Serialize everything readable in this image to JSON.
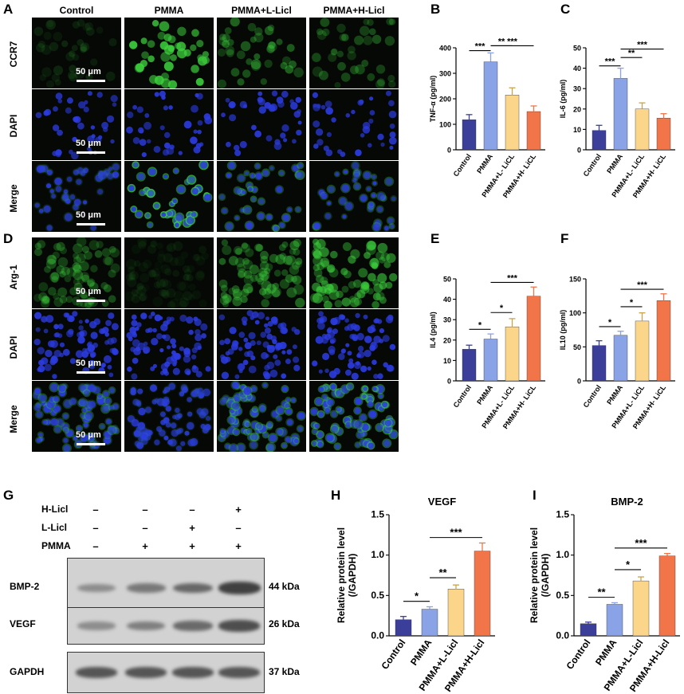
{
  "panels": {
    "A": "A",
    "B": "B",
    "C": "C",
    "D": "D",
    "E": "E",
    "F": "F",
    "G": "G",
    "H": "H",
    "I": "I"
  },
  "micro_columns": [
    "Control",
    "PMMA",
    "PMMA+L-Licl",
    "PMMA+H-Licl"
  ],
  "micro_rows_top": [
    "CCR7",
    "DAPI",
    "Merge"
  ],
  "micro_rows_bottom": [
    "Arg-1",
    "DAPI",
    "Merge"
  ],
  "scale_bar_label": "50 μm",
  "colors": {
    "control": "#3b3f99",
    "pmma": "#8aa2e6",
    "low": "#fbd68a",
    "high": "#f2754a",
    "green": "#2aa02a",
    "blue": "#2233cc"
  },
  "western": {
    "rows": [
      {
        "label": "H-Licl",
        "signs": [
          "–",
          "–",
          "–",
          "+"
        ]
      },
      {
        "label": "L-Licl",
        "signs": [
          "–",
          "–",
          "+",
          "–"
        ]
      },
      {
        "label": "PMMA",
        "signs": [
          "–",
          "+",
          "+",
          "+"
        ]
      }
    ],
    "blots": [
      {
        "label": "BMP-2",
        "kda": "44 kDa",
        "intensity": [
          0.35,
          0.5,
          0.62,
          0.9
        ]
      },
      {
        "label": "VEGF",
        "kda": "26 kDa",
        "intensity": [
          0.35,
          0.45,
          0.6,
          0.8
        ]
      },
      {
        "label": "GAPDH",
        "kda": "37 kDa",
        "intensity": [
          0.75,
          0.75,
          0.75,
          0.75
        ]
      }
    ]
  },
  "chart_data": [
    {
      "id": "B",
      "type": "bar",
      "categories": [
        "Control",
        "PMMA",
        "PMMA+L- LiCL",
        "PMMA+H- LiCL"
      ],
      "values": [
        118,
        345,
        215,
        150
      ],
      "errors": [
        20,
        35,
        28,
        22
      ],
      "ylabel": "TNF-α (pg/ml)",
      "ylim": [
        0,
        400
      ],
      "yticks": [
        0,
        100,
        200,
        300,
        400
      ],
      "sig": [
        {
          "a": 0,
          "b": 1,
          "label": "***"
        },
        {
          "a": 1,
          "b": 2,
          "label": "**"
        },
        {
          "a": 1,
          "b": 3,
          "label": "***"
        }
      ]
    },
    {
      "id": "C",
      "type": "bar",
      "categories": [
        "Control",
        "PMMA",
        "PMMA+L- LiCL",
        "PMMA+H- LiCL"
      ],
      "values": [
        9.5,
        35,
        20,
        15.5
      ],
      "errors": [
        2.5,
        5,
        3,
        2.2
      ],
      "ylabel": "IL-6 (pg/ml)",
      "ylim": [
        0,
        50
      ],
      "yticks": [
        0,
        10,
        20,
        30,
        40,
        50
      ],
      "sig": [
        {
          "a": 0,
          "b": 1,
          "label": "***"
        },
        {
          "a": 1,
          "b": 2,
          "label": "**"
        },
        {
          "a": 1,
          "b": 3,
          "label": "***"
        }
      ]
    },
    {
      "id": "E",
      "type": "bar",
      "categories": [
        "Control",
        "PMMA",
        "PMMA+L- LiCL",
        "PMMA+H- LiCL"
      ],
      "values": [
        15.5,
        20.5,
        26.5,
        41.5
      ],
      "errors": [
        2,
        2.5,
        4,
        4.5
      ],
      "ylabel": "IL4 (pg/ml)",
      "ylim": [
        0,
        50
      ],
      "yticks": [
        0,
        10,
        20,
        30,
        40,
        50
      ],
      "sig": [
        {
          "a": 0,
          "b": 1,
          "label": "*"
        },
        {
          "a": 1,
          "b": 2,
          "label": "*"
        },
        {
          "a": 1,
          "b": 3,
          "label": "***"
        }
      ]
    },
    {
      "id": "F",
      "type": "bar",
      "categories": [
        "Control",
        "PMMA",
        "PMMA+L- LiCL",
        "PMMA+H- LiCL"
      ],
      "values": [
        52,
        67,
        88,
        118
      ],
      "errors": [
        7,
        6,
        12,
        10
      ],
      "ylabel": "IL10 (pg/ml)",
      "ylim": [
        0,
        150
      ],
      "yticks": [
        0,
        50,
        100,
        150
      ],
      "sig": [
        {
          "a": 0,
          "b": 1,
          "label": "*"
        },
        {
          "a": 1,
          "b": 2,
          "label": "*"
        },
        {
          "a": 1,
          "b": 3,
          "label": "***"
        }
      ]
    },
    {
      "id": "H",
      "type": "bar",
      "title": "VEGF",
      "categories": [
        "Control",
        "PMMA",
        "PMMA+L-Licl",
        "PMMA+H-Licl"
      ],
      "values": [
        0.2,
        0.33,
        0.58,
        1.05
      ],
      "errors": [
        0.04,
        0.03,
        0.05,
        0.1
      ],
      "ylabel": "Relative protein level (/GAPDH)",
      "ylim": [
        0,
        1.5
      ],
      "yticks": [
        0,
        0.5,
        1.0,
        1.5
      ],
      "ytick_labels": [
        "0.0",
        "0.5",
        "1.0",
        "1.5"
      ],
      "sig": [
        {
          "a": 0,
          "b": 1,
          "label": "*"
        },
        {
          "a": 1,
          "b": 2,
          "label": "**"
        },
        {
          "a": 1,
          "b": 3,
          "label": "***"
        }
      ]
    },
    {
      "id": "I",
      "type": "bar",
      "title": "BMP-2",
      "categories": [
        "Control",
        "PMMA",
        "PMMA+L-Licl",
        "PMMA+H-Licl"
      ],
      "values": [
        0.15,
        0.39,
        0.68,
        0.99
      ],
      "errors": [
        0.02,
        0.02,
        0.05,
        0.03
      ],
      "ylabel": "Relative protein level (/GAPDH)",
      "ylim": [
        0,
        1.5
      ],
      "yticks": [
        0,
        0.5,
        1.0,
        1.5
      ],
      "ytick_labels": [
        "0.0",
        "0.5",
        "1.0",
        "1.5"
      ],
      "sig": [
        {
          "a": 0,
          "b": 1,
          "label": "**"
        },
        {
          "a": 1,
          "b": 2,
          "label": "*"
        },
        {
          "a": 1,
          "b": 3,
          "label": "***"
        }
      ]
    }
  ]
}
